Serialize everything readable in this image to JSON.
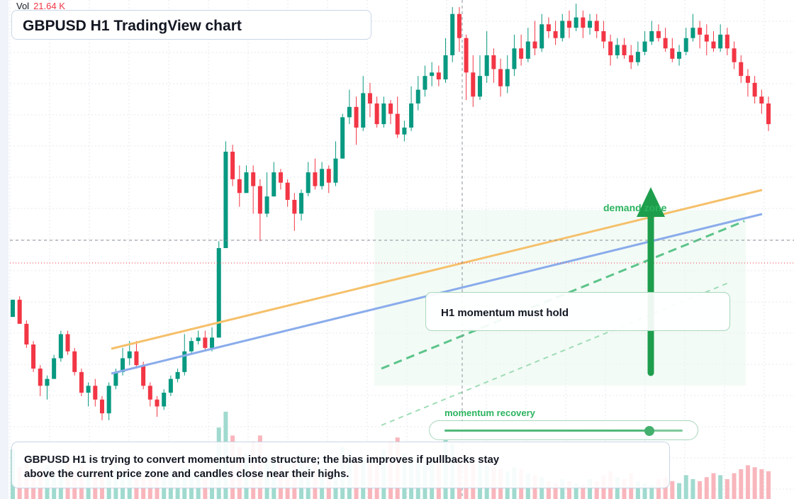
{
  "header": {
    "title": "GBPUSD H1 TradingView chart",
    "vol_label": "Vol",
    "vol_value": "21.64 K"
  },
  "annotations": {
    "callout": "H1 momentum must hold",
    "zone_label": "demand zone",
    "momentum_label": "momentum recovery",
    "momentum_level": 0.86
  },
  "summary": "GBPUSD H1 is trying to convert momentum into structure; the bias improves if pullbacks stay above the current price zone and candles close near their highs.",
  "colors": {
    "up": "#089981",
    "down": "#f23645",
    "trend_orange": "#f5c06a",
    "trend_blue": "#8aaceb",
    "accent_green": "#2bb35f"
  },
  "chart_data": {
    "type": "candlestick",
    "symbol": "GBPUSD",
    "timeframe": "H1",
    "grid": true,
    "price_range": [
      0,
      100
    ],
    "volume_range": [
      0,
      100
    ],
    "candles": [
      [
        40,
        45,
        40,
        45,
        50
      ],
      [
        45,
        38,
        38,
        46,
        32
      ],
      [
        38,
        32,
        31,
        39,
        40
      ],
      [
        32,
        25,
        24,
        33,
        28
      ],
      [
        25,
        20,
        17,
        26,
        30
      ],
      [
        20,
        22,
        16,
        23,
        34
      ],
      [
        22,
        28,
        22,
        29,
        26
      ],
      [
        28,
        35,
        27,
        36,
        30
      ],
      [
        35,
        30,
        29,
        36,
        38
      ],
      [
        30,
        24,
        23,
        31,
        28
      ],
      [
        24,
        18,
        17,
        25,
        34
      ],
      [
        18,
        20,
        14,
        21,
        24
      ],
      [
        20,
        16,
        14,
        22,
        26
      ],
      [
        16,
        12,
        10,
        17,
        30
      ],
      [
        12,
        20,
        10,
        21,
        28
      ],
      [
        20,
        24,
        19,
        25,
        36
      ],
      [
        24,
        28,
        23,
        31,
        26
      ],
      [
        28,
        30,
        26,
        33,
        22
      ],
      [
        30,
        26,
        25,
        33,
        20
      ],
      [
        26,
        20,
        19,
        27,
        24
      ],
      [
        20,
        16,
        14,
        21,
        26
      ],
      [
        16,
        14,
        11,
        17,
        28
      ],
      [
        14,
        18,
        13,
        19,
        26
      ],
      [
        18,
        22,
        17,
        23,
        30
      ],
      [
        22,
        24,
        21,
        25,
        24
      ],
      [
        24,
        30,
        23,
        35,
        32
      ],
      [
        30,
        33,
        29,
        34,
        28
      ],
      [
        33,
        34,
        32,
        36,
        24
      ],
      [
        34,
        31,
        30,
        36,
        22
      ],
      [
        31,
        34,
        30,
        37,
        26
      ],
      [
        34,
        60,
        34,
        62,
        72
      ],
      [
        60,
        88,
        60,
        91,
        88
      ],
      [
        88,
        80,
        78,
        90,
        64
      ],
      [
        80,
        76,
        72,
        84,
        52
      ],
      [
        76,
        82,
        76,
        84,
        46
      ],
      [
        82,
        78,
        70,
        84,
        58
      ],
      [
        78,
        70,
        62,
        80,
        64
      ],
      [
        70,
        75,
        69,
        82,
        44
      ],
      [
        75,
        82,
        75,
        85,
        40
      ],
      [
        82,
        79,
        77,
        83,
        36
      ],
      [
        79,
        74,
        72,
        80,
        30
      ],
      [
        74,
        70,
        65,
        76,
        42
      ],
      [
        70,
        76,
        68,
        77,
        46
      ],
      [
        76,
        82,
        75,
        85,
        34
      ],
      [
        82,
        78,
        77,
        86,
        38
      ],
      [
        78,
        83,
        77,
        85,
        32
      ],
      [
        83,
        79,
        76,
        84,
        30
      ],
      [
        79,
        86,
        78,
        91,
        28
      ],
      [
        86,
        98,
        86,
        99,
        52
      ],
      [
        98,
        101,
        96,
        106,
        48
      ],
      [
        101,
        95,
        90,
        104,
        42
      ],
      [
        95,
        105,
        94,
        110,
        40
      ],
      [
        105,
        102,
        98,
        108,
        36
      ],
      [
        102,
        96,
        95,
        104,
        44
      ],
      [
        96,
        102,
        95,
        104,
        50
      ],
      [
        102,
        99,
        96,
        103,
        58
      ],
      [
        99,
        93,
        92,
        104,
        62
      ],
      [
        93,
        95,
        91,
        97,
        46
      ],
      [
        95,
        102,
        94,
        107,
        40
      ],
      [
        102,
        106,
        100,
        110,
        38
      ],
      [
        106,
        110,
        104,
        113,
        34
      ],
      [
        110,
        111,
        107,
        114,
        40
      ],
      [
        111,
        109,
        107,
        113,
        36
      ],
      [
        109,
        116,
        108,
        121,
        60
      ],
      [
        116,
        128,
        114,
        130,
        56
      ],
      [
        128,
        121,
        117,
        130,
        42
      ],
      [
        121,
        111,
        103,
        122,
        38
      ],
      [
        111,
        104,
        101,
        116,
        40
      ],
      [
        104,
        110,
        103,
        116,
        36
      ],
      [
        110,
        116,
        108,
        123,
        34
      ],
      [
        116,
        112,
        108,
        118,
        32
      ],
      [
        112,
        107,
        104,
        115,
        30
      ],
      [
        107,
        112,
        105,
        116,
        28
      ],
      [
        112,
        118,
        110,
        122,
        32
      ],
      [
        118,
        115,
        113,
        122,
        30
      ],
      [
        115,
        120,
        114,
        124,
        26
      ],
      [
        120,
        118,
        116,
        126,
        24
      ],
      [
        118,
        125,
        117,
        128,
        22
      ],
      [
        125,
        123,
        121,
        127,
        18
      ],
      [
        123,
        121,
        119,
        126,
        16
      ],
      [
        121,
        126,
        120,
        128,
        20
      ],
      [
        126,
        124,
        121,
        129,
        18
      ],
      [
        124,
        127,
        123,
        131,
        16
      ],
      [
        127,
        124,
        121,
        129,
        14
      ],
      [
        124,
        126,
        122,
        128,
        20
      ],
      [
        126,
        123,
        121,
        128,
        18
      ],
      [
        123,
        120,
        118,
        126,
        24
      ],
      [
        120,
        116,
        113,
        122,
        28
      ],
      [
        116,
        119,
        115,
        121,
        22
      ],
      [
        119,
        116,
        115,
        121,
        20
      ],
      [
        116,
        114,
        112,
        119,
        26
      ],
      [
        114,
        117,
        113,
        120,
        18
      ],
      [
        117,
        120,
        116,
        123,
        16
      ],
      [
        120,
        123,
        119,
        126,
        14
      ],
      [
        123,
        121,
        120,
        125,
        20
      ],
      [
        121,
        118,
        117,
        124,
        22
      ],
      [
        118,
        115,
        114,
        121,
        18
      ],
      [
        115,
        117,
        113,
        119,
        16
      ],
      [
        117,
        121,
        116,
        124,
        24
      ],
      [
        121,
        124,
        120,
        128,
        20
      ],
      [
        124,
        122,
        118,
        126,
        18
      ],
      [
        122,
        120,
        116,
        125,
        22
      ],
      [
        120,
        118,
        117,
        123,
        26
      ],
      [
        118,
        122,
        117,
        125,
        24
      ],
      [
        122,
        118,
        116,
        124,
        20
      ],
      [
        118,
        114,
        112,
        120,
        26
      ],
      [
        114,
        110,
        108,
        116,
        30
      ],
      [
        110,
        108,
        104,
        112,
        34
      ],
      [
        108,
        104,
        102,
        110,
        32
      ],
      [
        104,
        102,
        99,
        106,
        30
      ],
      [
        102,
        96,
        94,
        104,
        28
      ]
    ],
    "series_lines": [
      {
        "type": "trend_orange",
        "points": [
          [
            0,
            42
          ],
          [
            112,
            99
          ]
        ]
      },
      {
        "type": "trend_blue",
        "points": [
          [
            0,
            29
          ],
          [
            112,
            92
          ]
        ]
      }
    ]
  }
}
